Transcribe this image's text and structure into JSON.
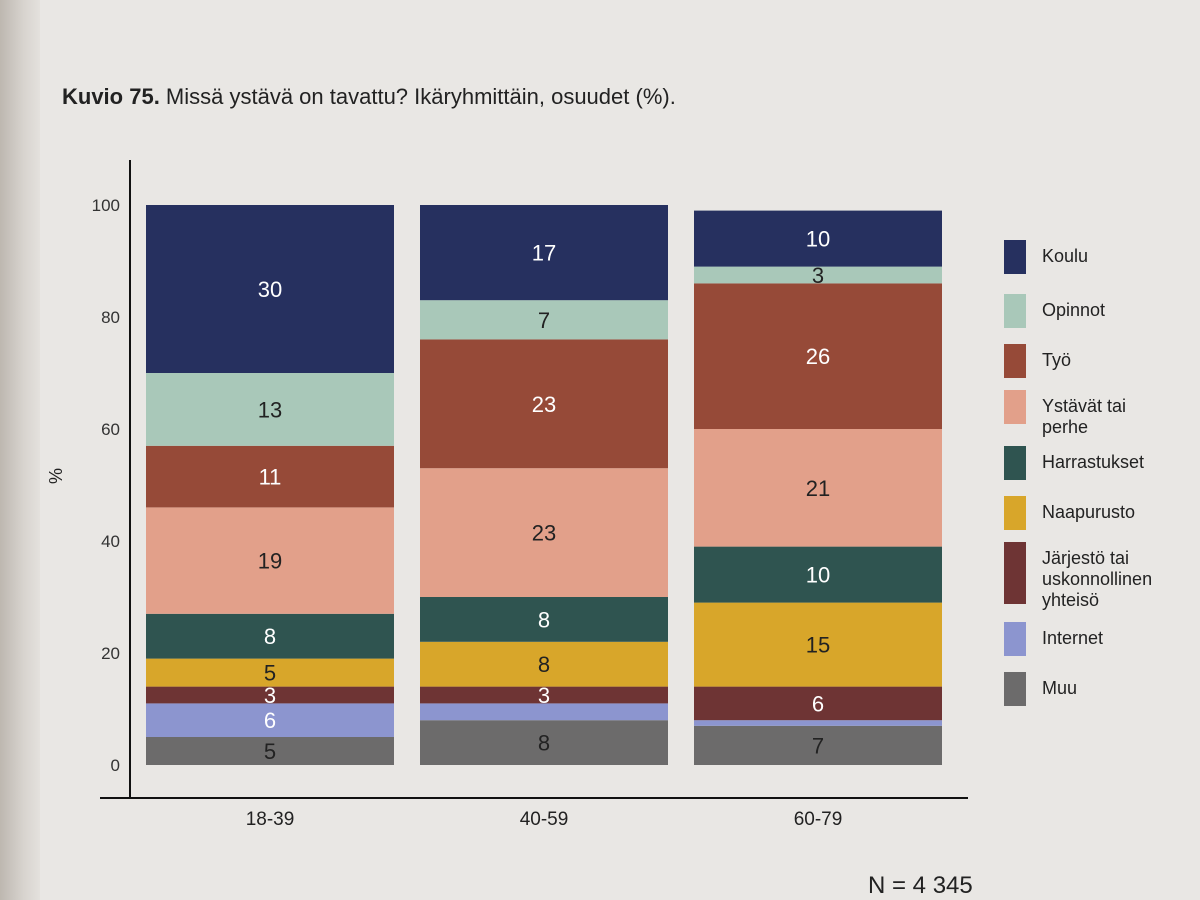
{
  "figure": {
    "title_bold": "Kuvio 75.",
    "title_rest": " Missä ystävä on tavattu? Ikäryhmittäin, osuudet (%).",
    "n_note": "N = 4 345"
  },
  "legend": [
    {
      "label": "Koulu",
      "color": "#26305f"
    },
    {
      "label": "Opinnot",
      "color": "#a9c8b9"
    },
    {
      "label": "Työ",
      "color": "#964a38"
    },
    {
      "label": "Ystävät tai perhe",
      "color": "#e2a08a"
    },
    {
      "label": "Harrastukset",
      "color": "#2f5450"
    },
    {
      "label": "Naapurusto",
      "color": "#d8a62a"
    },
    {
      "label": "Järjestö tai uskonnollinen yhteisö",
      "color": "#6e3434"
    },
    {
      "label": "Internet",
      "color": "#8c95cf"
    },
    {
      "label": "Muu",
      "color": "#6c6b6b"
    }
  ],
  "chart_data": {
    "type": "bar",
    "stacked": true,
    "title": "Missä ystävä on tavattu? Ikäryhmittäin, osuudet (%).",
    "xlabel": "",
    "ylabel": "%",
    "ylim": [
      0,
      100
    ],
    "yticks": [
      0,
      20,
      40,
      60,
      80,
      100
    ],
    "categories": [
      "18-39",
      "40-59",
      "60-79"
    ],
    "series": [
      {
        "name": "Muu",
        "values": [
          5,
          8,
          7
        ],
        "labels": [
          "5",
          "8",
          "7"
        ]
      },
      {
        "name": "Internet",
        "values": [
          6,
          3,
          1
        ],
        "labels": [
          "6",
          "",
          ""
        ]
      },
      {
        "name": "Järjestö tai uskonnollinen yhteisö",
        "values": [
          3,
          3,
          6
        ],
        "labels": [
          "3",
          "3",
          "6"
        ]
      },
      {
        "name": "Naapurusto",
        "values": [
          5,
          8,
          15
        ],
        "labels": [
          "5",
          "8",
          "15"
        ]
      },
      {
        "name": "Harrastukset",
        "values": [
          8,
          8,
          10
        ],
        "labels": [
          "8",
          "8",
          "10"
        ]
      },
      {
        "name": "Ystävät tai perhe",
        "values": [
          19,
          23,
          21
        ],
        "labels": [
          "19",
          "23",
          "21"
        ]
      },
      {
        "name": "Työ",
        "values": [
          11,
          23,
          26
        ],
        "labels": [
          "11",
          "23",
          "26"
        ]
      },
      {
        "name": "Opinnot",
        "values": [
          13,
          7,
          3
        ],
        "labels": [
          "13",
          "7",
          "3"
        ]
      },
      {
        "name": "Koulu",
        "values": [
          30,
          17,
          10
        ],
        "labels": [
          "30",
          "17",
          "10"
        ]
      }
    ],
    "label_colors": {
      "Muu": "#222222",
      "Internet": "#ffffff",
      "Järjestö tai uskonnollinen yhteisö": "#ffffff",
      "Naapurusto": "#222222",
      "Harrastukset": "#ffffff",
      "Ystävät tai perhe": "#222222",
      "Työ": "#ffffff",
      "Opinnot": "#222222",
      "Koulu": "#ffffff"
    },
    "grid": false,
    "legend_position": "right"
  }
}
